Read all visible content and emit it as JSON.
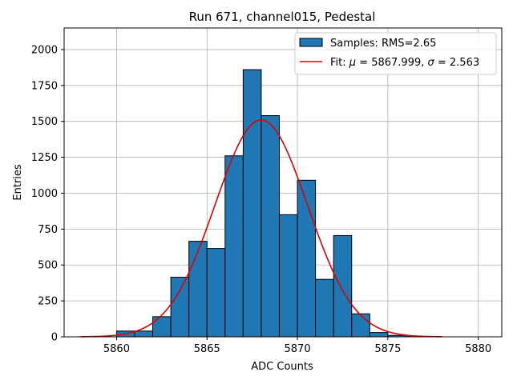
{
  "chart_data": {
    "type": "bar",
    "title": "Run 671, channel015, Pedestal",
    "xlabel": "ADC Counts",
    "ylabel": "Entries",
    "xlim": [
      5857.1,
      5881.3
    ],
    "ylim": [
      0,
      2150
    ],
    "xticks": [
      5860,
      5865,
      5870,
      5875,
      5880
    ],
    "yticks": [
      0,
      250,
      500,
      750,
      1000,
      1250,
      1500,
      1750,
      2000
    ],
    "grid": true,
    "legend_position": "top-right",
    "colors": {
      "bars": "#1f77b4",
      "bar_edge": "#000000",
      "fit": "#e00000",
      "grid": "#b0b0b0"
    },
    "histogram": {
      "name": "Samples: RMS=2.65",
      "bin_edges": [
        5860,
        5861,
        5862,
        5863,
        5864,
        5865,
        5866,
        5867,
        5868,
        5869,
        5870,
        5871,
        5872,
        5873,
        5874,
        5875,
        5876,
        5877,
        5878,
        5879,
        5880
      ],
      "counts": [
        40,
        40,
        140,
        415,
        665,
        615,
        1260,
        1860,
        1540,
        850,
        1090,
        400,
        705,
        160,
        30,
        10,
        2,
        0,
        0,
        0
      ]
    },
    "fit": {
      "name_prefix": "Fit: ",
      "mu_symbol": "μ",
      "mu_text": " = 5867.999, ",
      "sigma_symbol": "σ",
      "sigma_text": " = 2.563",
      "mu": 5867.999,
      "sigma": 2.563,
      "amplitude": 1510,
      "x_range": [
        5858,
        5878
      ]
    }
  }
}
